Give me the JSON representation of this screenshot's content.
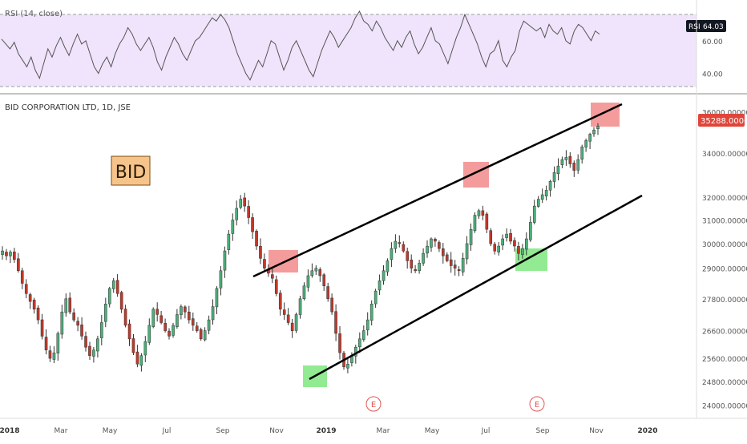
{
  "colors": {
    "up": "#4caf7a",
    "down": "#c0392b",
    "wick": "#333333",
    "rsi_line": "#555555",
    "rsi_band_fill": "#efe4fb",
    "rsi_band_border": "#9e9e9e",
    "channel_line": "#000000",
    "red_zone": "#f28b8b",
    "green_zone": "#7fe87f",
    "price_badge": "#e0453a",
    "rsi_badge": "#131722",
    "ticker_box_fill": "#f6c48a",
    "ticker_box_border": "#7a4b12",
    "earnings_marker": "#e05252",
    "axis_text": "#555555"
  },
  "main": {
    "title": "BID CORPORATION LTD, 1D, JSE",
    "ticker_box": "BID",
    "earnings_label": "E",
    "price_badge": "35288.00000"
  },
  "rsi": {
    "label": "RSI (14, close)",
    "badge_name": "RSI",
    "badge_value": "64.03"
  },
  "chart_data": [
    {
      "type": "line",
      "title": "RSI (14, close)",
      "xlabel": "",
      "ylabel": "",
      "y_ticks": [
        "40.00",
        "60.00"
      ],
      "ylim": [
        30,
        80
      ],
      "bands": [
        30,
        70
      ],
      "current_value": 64.03,
      "series": [
        {
          "name": "RSI (14, close)",
          "values": [
            61,
            58,
            55,
            59,
            52,
            48,
            44,
            50,
            42,
            37,
            46,
            55,
            50,
            57,
            62,
            56,
            51,
            58,
            64,
            58,
            60,
            52,
            44,
            40,
            46,
            50,
            44,
            52,
            58,
            62,
            68,
            64,
            58,
            54,
            58,
            62,
            56,
            47,
            42,
            50,
            56,
            62,
            58,
            52,
            48,
            54,
            60,
            62,
            66,
            70,
            74,
            72,
            76,
            73,
            68,
            60,
            52,
            46,
            40,
            36,
            42,
            48,
            44,
            52,
            60,
            58,
            50,
            42,
            48,
            56,
            60,
            54,
            48,
            42,
            38,
            46,
            54,
            60,
            66,
            62,
            56,
            60,
            64,
            68,
            74,
            78,
            72,
            70,
            66,
            72,
            68,
            62,
            58,
            54,
            60,
            56,
            62,
            66,
            58,
            52,
            56,
            62,
            68,
            60,
            58,
            52,
            46,
            54,
            62,
            68,
            76,
            70,
            64,
            58,
            50,
            44,
            52,
            54,
            60,
            48,
            44,
            50,
            54,
            66,
            72,
            70,
            68,
            66,
            68,
            62,
            70,
            66,
            64,
            68,
            60,
            58,
            66,
            70,
            68,
            64,
            60,
            66,
            64
          ]
        }
      ]
    },
    {
      "type": "candlestick",
      "title": "BID CORPORATION LTD, 1D, JSE",
      "xlabel": "",
      "ylabel": "",
      "x_ticks": [
        "2018",
        "Mar",
        "May",
        "Jul",
        "Sep",
        "Nov",
        "2019",
        "Mar",
        "May",
        "Jul",
        "Sep",
        "Nov",
        "2020"
      ],
      "y_ticks": [
        "24000.00000",
        "24800.00000",
        "25600.00000",
        "26600.00000",
        "27800.00000",
        "29000.00000",
        "30000.00000",
        "31000.00000",
        "32000.00000",
        "34000.00000",
        "36000.00000"
      ],
      "ylim": [
        23800,
        36300
      ],
      "log_scale": true,
      "last_price": 35288,
      "series": [
        {
          "name": "close",
          "values": [
            29700,
            29500,
            29650,
            29350,
            28900,
            28400,
            28000,
            27700,
            27400,
            27000,
            26400,
            25900,
            25600,
            25800,
            26500,
            27300,
            27800,
            27300,
            27000,
            26800,
            26400,
            26000,
            25700,
            25900,
            26300,
            26900,
            27600,
            28200,
            28500,
            28000,
            27400,
            26800,
            26300,
            25800,
            25400,
            25700,
            26200,
            26800,
            27400,
            27200,
            26900,
            26600,
            26400,
            26800,
            27200,
            27500,
            27300,
            27000,
            26800,
            26600,
            26300,
            26600,
            27000,
            27500,
            28200,
            28900,
            29700,
            30400,
            31000,
            31500,
            31900,
            31600,
            31100,
            30500,
            29900,
            29400,
            29000,
            28800,
            28600,
            28000,
            27400,
            27200,
            26900,
            26600,
            27200,
            27800,
            28300,
            28700,
            28900,
            29000,
            28700,
            28300,
            27800,
            27300,
            26500,
            25800,
            25300,
            25400,
            25700,
            26000,
            26300,
            26600,
            27000,
            27600,
            28100,
            28500,
            28900,
            29300,
            29800,
            30100,
            30000,
            29700,
            29300,
            29000,
            28900,
            29200,
            29600,
            29900,
            30200,
            30100,
            29800,
            29500,
            29300,
            29100,
            29000,
            28900,
            29400,
            30000,
            30600,
            31200,
            31400,
            31200,
            30600,
            30000,
            29700,
            29900,
            30200,
            30400,
            30100,
            29900,
            29600,
            29800,
            30200,
            30900,
            31600,
            31900,
            32100,
            32300,
            32700,
            33100,
            33400,
            33700,
            33800,
            33500,
            33200,
            33700,
            34300,
            34600,
            34900,
            35100,
            35288
          ]
        }
      ]
    }
  ]
}
